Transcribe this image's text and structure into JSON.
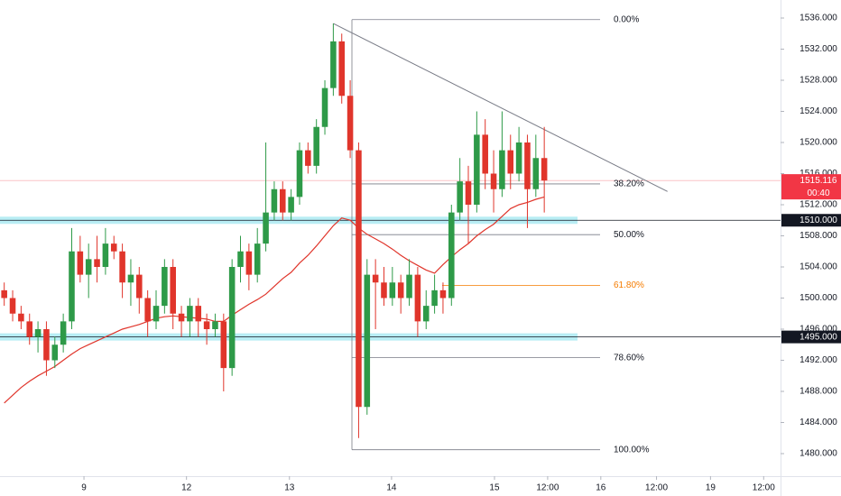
{
  "chart_data": {
    "type": "candlestick",
    "up_color": "#2e9a48",
    "down_color": "#e0352b",
    "open": [
      1501,
      1500,
      1498,
      1497,
      1495,
      1496,
      1492,
      1494,
      1497,
      1506,
      1503,
      1505,
      1504,
      1507,
      1506,
      1502,
      1503,
      1500,
      1497,
      1499,
      1504,
      1498,
      1497,
      1499,
      1497,
      1496,
      1497,
      1491,
      1504,
      1506,
      1503,
      1507,
      1511,
      1514,
      1511,
      1513,
      1519,
      1517,
      1522,
      1527,
      1533,
      1526,
      1519,
      1486,
      1503,
      1502,
      1500,
      1502,
      1500,
      1503,
      1497,
      1499,
      1501,
      1500,
      1511,
      1515,
      1512,
      1521,
      1516,
      1514,
      1519,
      1516,
      1520,
      1514,
      1518
    ],
    "high": [
      1502,
      1501,
      1499,
      1498,
      1497,
      1497,
      1495,
      1498,
      1509,
      1508,
      1507,
      1508,
      1509,
      1508,
      1507,
      1505,
      1504,
      1501,
      1501,
      1505,
      1505,
      1499,
      1500,
      1500,
      1498,
      1498,
      1498,
      1505,
      1508,
      1507,
      1509,
      1520,
      1515,
      1515,
      1514,
      1520,
      1520,
      1523,
      1528,
      1535.3,
      1534,
      1528,
      1520,
      1505,
      1505,
      1504,
      1504,
      1503,
      1505,
      1504,
      1501,
      1503,
      1502,
      1512,
      1518,
      1517,
      1524,
      1523,
      1519,
      1524,
      1521,
      1522,
      1521,
      1521,
      1522
    ],
    "low": [
      1499,
      1497,
      1496,
      1494,
      1493,
      1490,
      1491,
      1493,
      1496,
      1502,
      1500,
      1502,
      1503,
      1505,
      1500,
      1499,
      1498,
      1495,
      1496,
      1498,
      1496,
      1495,
      1495,
      1495,
      1494,
      1495,
      1488,
      1490,
      1502,
      1501,
      1502,
      1506,
      1510,
      1510,
      1510,
      1512,
      1516,
      1516,
      1521,
      1526,
      1525,
      1518,
      1482,
      1485,
      1496,
      1499,
      1499,
      1498,
      1499,
      1495,
      1496,
      1498,
      1498,
      1499,
      1510,
      1507,
      1511,
      1514,
      1511,
      1513,
      1514,
      1515,
      1509,
      1513,
      1511
    ],
    "close": [
      1500,
      1498,
      1497,
      1495,
      1496,
      1492,
      1494,
      1497,
      1506,
      1503,
      1505,
      1504,
      1507,
      1506,
      1502,
      1503,
      1500,
      1497,
      1499,
      1504,
      1498,
      1497,
      1499,
      1497,
      1496,
      1497,
      1491,
      1504,
      1506,
      1503,
      1507,
      1511,
      1514,
      1511,
      1513,
      1519,
      1517,
      1522,
      1527,
      1533,
      1526,
      1519,
      1486,
      1503,
      1502,
      1500,
      1502,
      1500,
      1503,
      1497,
      1499,
      1501,
      1500,
      1511,
      1515,
      1512,
      1521,
      1516,
      1514,
      1519,
      1516,
      1520,
      1514,
      1518,
      1515.116
    ],
    "ma": {
      "color": "#e0352b",
      "values": [
        1486.5,
        1487.5,
        1488.5,
        1489.3,
        1490,
        1490.6,
        1491.2,
        1492,
        1492.8,
        1493.5,
        1494,
        1494.5,
        1495,
        1495.5,
        1496,
        1496.3,
        1496.6,
        1497,
        1497.4,
        1497.6,
        1497.7,
        1497.6,
        1497.5,
        1497.4,
        1497.3,
        1497,
        1497,
        1497.8,
        1498.5,
        1499.2,
        1499.8,
        1500.5,
        1501.5,
        1502.5,
        1503.3,
        1504.5,
        1505.5,
        1506.7,
        1508,
        1509.3,
        1510.3,
        1510,
        1509,
        1508.2,
        1507.6,
        1507,
        1506.3,
        1505.5,
        1504.8,
        1504.2,
        1503.6,
        1503.2,
        1504.3,
        1505.3,
        1506.2,
        1507,
        1508,
        1508.8,
        1509.5,
        1510.5,
        1511.5,
        1512,
        1512.3,
        1512.7,
        1513
      ]
    },
    "ylim": [
      1477.1,
      1538.32
    ],
    "yticks": [
      {
        "value": 1480,
        "label": "1480.000"
      },
      {
        "value": 1484,
        "label": "1484.000"
      },
      {
        "value": 1488,
        "label": "1488.000"
      },
      {
        "value": 1492,
        "label": "1492.000"
      },
      {
        "value": 1496,
        "label": "1496.000"
      },
      {
        "value": 1500,
        "label": "1500.000"
      },
      {
        "value": 1504,
        "label": "1504.000"
      },
      {
        "value": 1508,
        "label": "1508.000"
      },
      {
        "value": 1512,
        "label": "1512.000"
      },
      {
        "value": 1516,
        "label": "1516.000"
      },
      {
        "value": 1520,
        "label": "1520.000"
      },
      {
        "value": 1524,
        "label": "1524.000"
      },
      {
        "value": 1528,
        "label": "1528.000"
      },
      {
        "value": 1532,
        "label": "1532.000"
      },
      {
        "value": 1536,
        "label": "1536.000"
      }
    ],
    "xlim": [
      -0.5,
      92
    ],
    "xticks": [
      {
        "value": 9.45,
        "label": "9"
      },
      {
        "value": 21.6,
        "label": "12"
      },
      {
        "value": 33.8,
        "label": "13"
      },
      {
        "value": 45.9,
        "label": "14"
      },
      {
        "value": 58.1,
        "label": "15"
      },
      {
        "value": 64.4,
        "label": "12:00"
      },
      {
        "value": 70.7,
        "label": "16"
      },
      {
        "value": 77.3,
        "label": "12:00"
      },
      {
        "value": 83.7,
        "label": "19"
      },
      {
        "value": 90,
        "label": "12:00"
      }
    ],
    "fib": {
      "high": 1535.8,
      "low": 1480.5,
      "color": "#787b86",
      "highlight_color": "#f57c00",
      "levels": [
        {
          "value": 0,
          "label": "0.00%"
        },
        {
          "value": 38.2,
          "label": "38.20%"
        },
        {
          "value": 50,
          "label": "50.00%"
        },
        {
          "value": 61.8,
          "label": "61.80%",
          "highlight": true
        },
        {
          "value": 78.6,
          "label": "78.60%"
        },
        {
          "value": 100,
          "label": "100.00%"
        }
      ]
    },
    "trendline": [
      {
        "x": 39,
        "y": 1535.3
      },
      {
        "x": 78.6,
        "y": 1513.7
      }
    ],
    "levels": [
      {
        "value": 1510,
        "label": "1510.000"
      },
      {
        "value": 1495,
        "label": "1495.000"
      }
    ],
    "band_color": "#9ae6f0",
    "price_line": {
      "value": 1515.116,
      "countdown": "00:40",
      "color": "#f23645"
    }
  }
}
